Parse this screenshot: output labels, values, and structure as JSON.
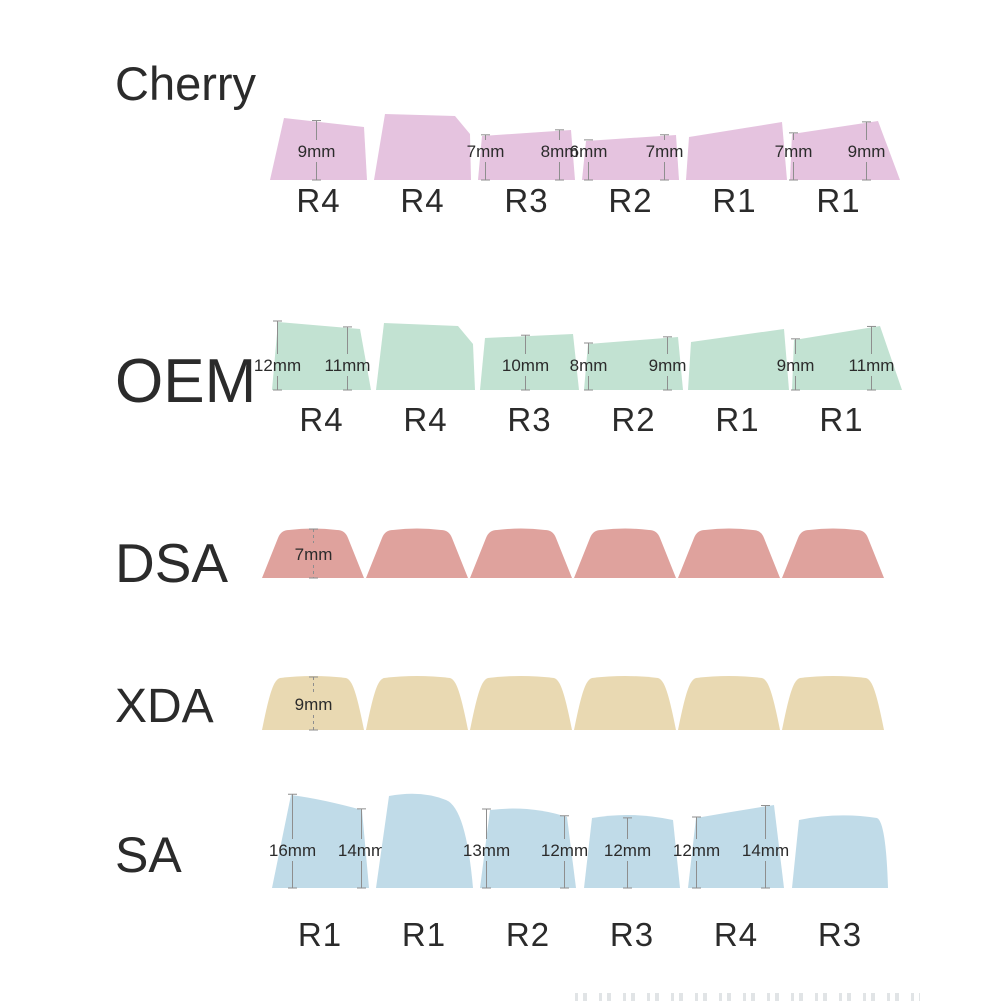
{
  "figure": {
    "background": "#ffffff",
    "measurement_line_color": "#8e8e8e",
    "measurement_text_color": "#3a3a3a",
    "row_label_color": "#2b2b2b",
    "title_color": "#141414"
  },
  "profiles": [
    {
      "name": "Cherry",
      "color": "#e5c3df",
      "keys": [
        {
          "row": "R4",
          "measurements": [
            {
              "value": "9mm"
            }
          ]
        },
        {
          "row": "R4",
          "measurements": []
        },
        {
          "row": "R3",
          "measurements": [
            {
              "value": "7mm"
            },
            {
              "value": "8mm"
            }
          ]
        },
        {
          "row": "R2",
          "measurements": [
            {
              "value": "6mm"
            },
            {
              "value": "7mm"
            }
          ]
        },
        {
          "row": "R1",
          "measurements": []
        },
        {
          "row": "R1",
          "measurements": [
            {
              "value": "7mm"
            },
            {
              "value": "9mm"
            }
          ]
        }
      ]
    },
    {
      "name": "OEM",
      "color": "#c2e2d2",
      "keys": [
        {
          "row": "R4",
          "measurements": [
            {
              "value": "12mm"
            },
            {
              "value": "11mm"
            }
          ]
        },
        {
          "row": "R4",
          "measurements": []
        },
        {
          "row": "R3",
          "measurements": [
            {
              "value": "10mm"
            }
          ]
        },
        {
          "row": "R2",
          "measurements": [
            {
              "value": "8mm"
            },
            {
              "value": "9mm"
            }
          ]
        },
        {
          "row": "R1",
          "measurements": []
        },
        {
          "row": "R1",
          "measurements": [
            {
              "value": "9mm"
            },
            {
              "value": "11mm"
            }
          ]
        }
      ]
    },
    {
      "name": "DSA",
      "color": "#dfa29d",
      "keys": [
        {
          "row": null,
          "measurements": [
            {
              "value": "7mm"
            }
          ]
        },
        {
          "row": null,
          "measurements": []
        },
        {
          "row": null,
          "measurements": []
        },
        {
          "row": null,
          "measurements": []
        },
        {
          "row": null,
          "measurements": []
        },
        {
          "row": null,
          "measurements": []
        }
      ]
    },
    {
      "name": "XDA",
      "color": "#e9d9b2",
      "keys": [
        {
          "row": null,
          "measurements": [
            {
              "value": "9mm"
            }
          ]
        },
        {
          "row": null,
          "measurements": []
        },
        {
          "row": null,
          "measurements": []
        },
        {
          "row": null,
          "measurements": []
        },
        {
          "row": null,
          "measurements": []
        },
        {
          "row": null,
          "measurements": []
        }
      ]
    },
    {
      "name": "SA",
      "color": "#c0dbe8",
      "keys": [
        {
          "row": "R1",
          "measurements": [
            {
              "value": "16mm"
            },
            {
              "value": "14mm"
            }
          ]
        },
        {
          "row": "R1",
          "measurements": []
        },
        {
          "row": "R2",
          "measurements": [
            {
              "value": "13mm"
            },
            {
              "value": "12mm"
            }
          ]
        },
        {
          "row": "R3",
          "measurements": [
            {
              "value": "12mm"
            }
          ]
        },
        {
          "row": "R4",
          "measurements": [
            {
              "value": "12mm"
            },
            {
              "value": "14mm"
            }
          ]
        },
        {
          "row": "R3",
          "measurements": []
        }
      ]
    }
  ]
}
